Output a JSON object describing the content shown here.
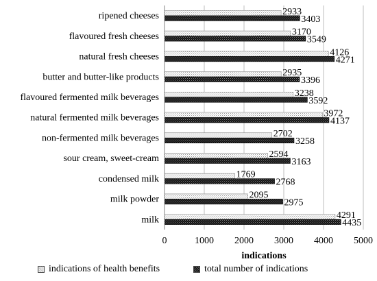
{
  "chart_data": {
    "type": "bar",
    "orientation": "horizontal",
    "categories": [
      "ripened cheeses",
      "flavoured fresh cheeses",
      "natural fresh cheeses",
      "butter and butter-like products",
      "flavoured fermented milk beverages",
      "natural fermented milk beverages",
      "non-fermented milk beverages",
      "sour cream, sweet-cream",
      "condensed milk",
      "milk powder",
      "milk"
    ],
    "series": [
      {
        "name": "indications of health benefits",
        "values": [
          2933,
          3170,
          4126,
          2935,
          3238,
          3972,
          2702,
          2594,
          1769,
          2095,
          4291
        ],
        "labels": [
          "2933",
          "3170",
          "4126",
          "2935",
          "3238",
          "3972",
          "2702",
          "2594",
          "1769",
          "2095",
          "4291"
        ]
      },
      {
        "name": "total number of indications",
        "values": [
          3403,
          3549,
          4271,
          3396,
          3592,
          4137,
          3258,
          3163,
          2768,
          2975,
          4435
        ],
        "labels": [
          "3403",
          "3549",
          "4271",
          "3396",
          "3592",
          "4137",
          "3258",
          "3163",
          "2768",
          "2975",
          "4435"
        ]
      }
    ],
    "xlabel": "indications",
    "xlim": [
      0,
      5000
    ],
    "xticks": [
      "0",
      "1000",
      "2000",
      "3000",
      "4000",
      "5000"
    ],
    "grid": true,
    "legend_position": "bottom"
  }
}
